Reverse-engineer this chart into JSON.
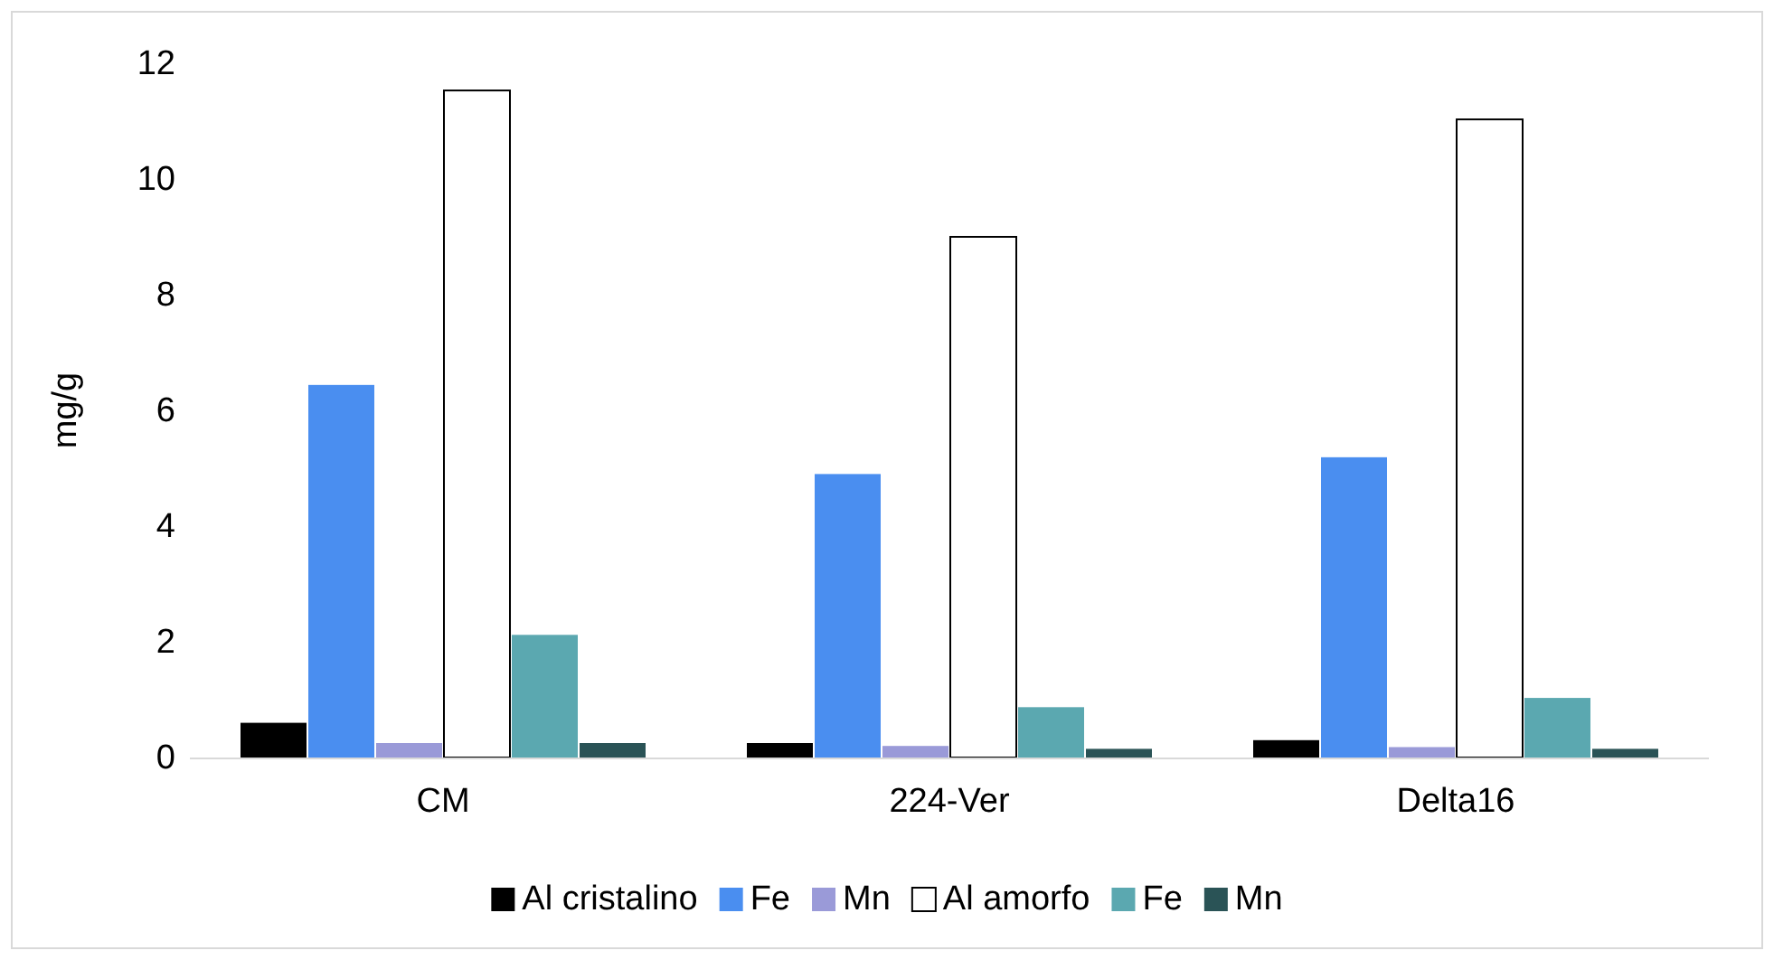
{
  "chart_data": {
    "type": "bar",
    "ylabel": "mg/g",
    "categories": [
      "CM",
      "224-Ver",
      "Delta16"
    ],
    "series": [
      {
        "name": "Al cristalino",
        "color": "#000000",
        "values": [
          0.6,
          0.25,
          0.3
        ]
      },
      {
        "name": "Fe",
        "color": "#4a8ef0",
        "values": [
          6.44,
          4.9,
          5.19
        ]
      },
      {
        "name": "Mn",
        "color": "#9a9ad8",
        "values": [
          0.25,
          0.2,
          0.18
        ]
      },
      {
        "name": "Al amorfo",
        "color": "#ffffff",
        "values": [
          11.53,
          9.0,
          11.03
        ]
      },
      {
        "name": "Fe",
        "color": "#5ba8b0",
        "values": [
          2.12,
          0.87,
          1.03
        ]
      },
      {
        "name": "Mn",
        "color": "#2a5356",
        "values": [
          0.25,
          0.15,
          0.15
        ]
      }
    ],
    "ylim": [
      0,
      12
    ],
    "yticks": [
      0,
      2,
      4,
      6,
      8,
      10,
      12
    ],
    "grid": false,
    "legend": "bottom"
  }
}
